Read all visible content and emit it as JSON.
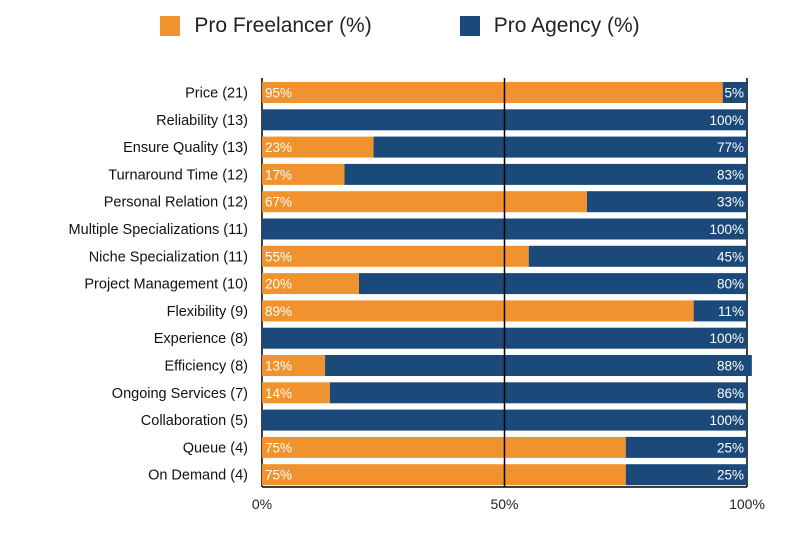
{
  "chart_data": {
    "type": "bar",
    "orientation": "horizontal",
    "stacked": true,
    "legend_position": "top",
    "grid": false,
    "xlim": [
      0,
      100
    ],
    "ticks": [
      "0%",
      "50%",
      "100%"
    ],
    "categories": [
      "Price (21)",
      "Reliability (13)",
      "Ensure Quality (13)",
      "Turnaround Time (12)",
      "Personal Relation (12)",
      "Multiple Specializations (11)",
      "Niche Specialization (11)",
      "Project Management (10)",
      "Flexibility (9)",
      "Experience (8)",
      "Efficiency (8)",
      "Ongoing Services (7)",
      "Collaboration (5)",
      "Queue (4)",
      "On Demand (4)"
    ],
    "series": [
      {
        "name": "Pro Freelancer (%)",
        "color": "#f0932f",
        "values": [
          95,
          0,
          23,
          17,
          67,
          0,
          55,
          20,
          89,
          0,
          13,
          14,
          0,
          75,
          75
        ],
        "labels": [
          "95%",
          "",
          "23%",
          "17%",
          "67%",
          "",
          "55%",
          "20%",
          "89%",
          "",
          "13%",
          "14%",
          "",
          "75%",
          "75%"
        ]
      },
      {
        "name": "Pro Agency (%)",
        "color": "#1b4a7a",
        "values": [
          5,
          100,
          77,
          83,
          33,
          100,
          45,
          80,
          11,
          100,
          88,
          86,
          100,
          25,
          25
        ],
        "labels": [
          "5%",
          "100%",
          "77%",
          "83%",
          "33%",
          "100%",
          "45%",
          "80%",
          "11%",
          "100%",
          "88%",
          "86%",
          "100%",
          "25%",
          "25%"
        ]
      }
    ]
  }
}
